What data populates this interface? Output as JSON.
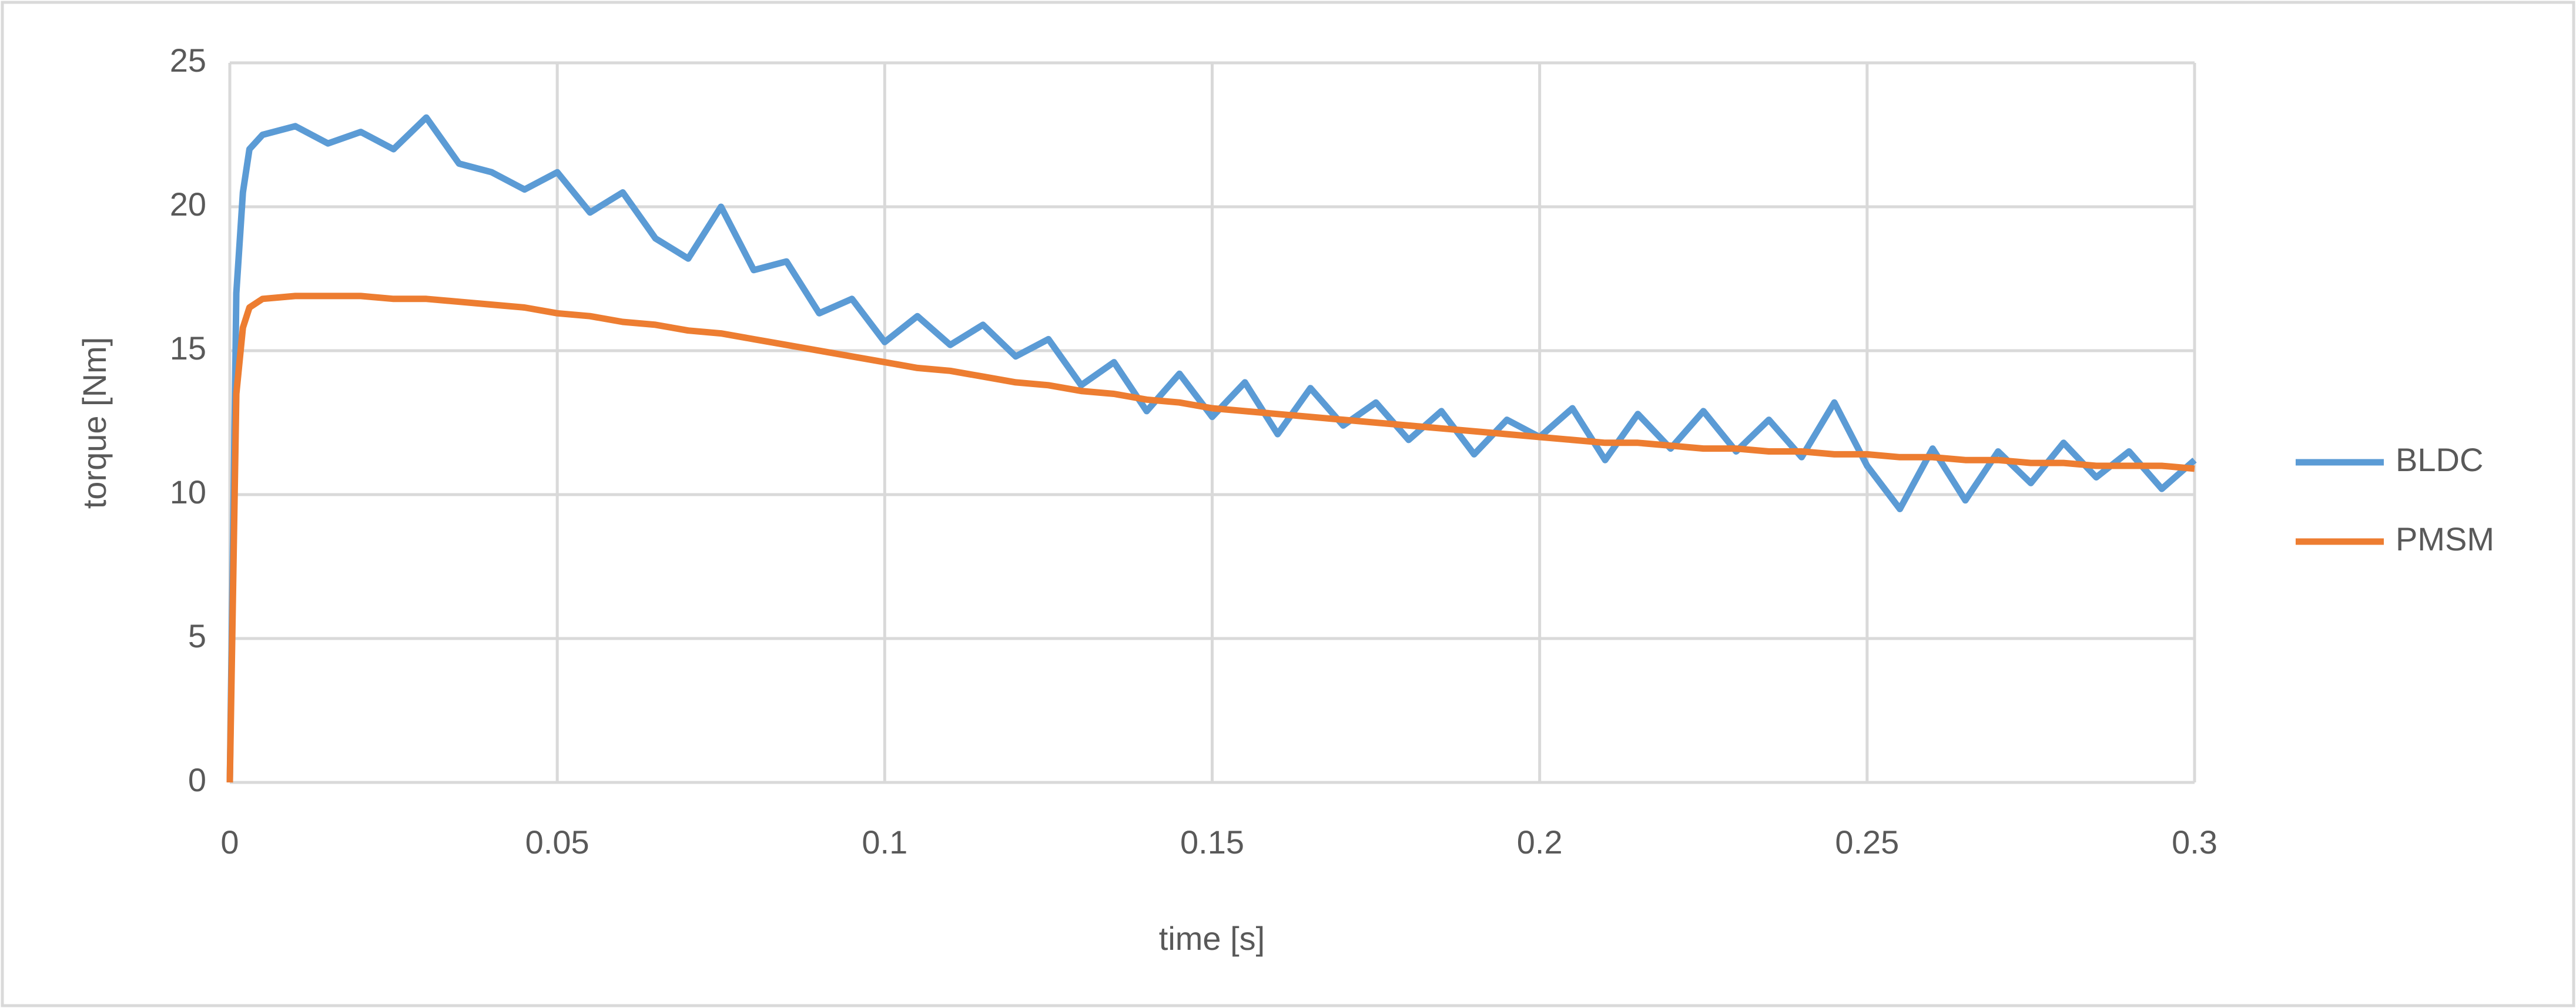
{
  "chart_data": {
    "type": "line",
    "xlabel": "time [s]",
    "ylabel": "torque [Nm]",
    "x": [
      0,
      0.001,
      0.002,
      0.003,
      0.005,
      0.01,
      0.015,
      0.02,
      0.025,
      0.03,
      0.035,
      0.04,
      0.045,
      0.05,
      0.055,
      0.06,
      0.065,
      0.07,
      0.075,
      0.08,
      0.085,
      0.09,
      0.095,
      0.1,
      0.105,
      0.11,
      0.115,
      0.12,
      0.125,
      0.13,
      0.135,
      0.14,
      0.145,
      0.15,
      0.155,
      0.16,
      0.165,
      0.17,
      0.175,
      0.18,
      0.185,
      0.19,
      0.195,
      0.2,
      0.205,
      0.21,
      0.215,
      0.22,
      0.225,
      0.23,
      0.235,
      0.24,
      0.245,
      0.25,
      0.255,
      0.26,
      0.265,
      0.27,
      0.275,
      0.28,
      0.285,
      0.29,
      0.295,
      0.3
    ],
    "series": [
      {
        "name": "BLDC",
        "color": "#5b9bd5",
        "values": [
          0,
          17,
          20.5,
          22,
          22.5,
          22.8,
          22.2,
          22.6,
          22.0,
          23.1,
          21.5,
          21.2,
          20.6,
          21.2,
          19.8,
          20.5,
          18.9,
          18.2,
          20.0,
          17.8,
          18.1,
          16.3,
          16.8,
          15.3,
          16.2,
          15.2,
          15.9,
          14.8,
          15.4,
          13.8,
          14.6,
          12.9,
          14.2,
          12.7,
          13.9,
          12.1,
          13.7,
          12.4,
          13.2,
          11.9,
          12.9,
          11.4,
          12.6,
          12.0,
          13.0,
          11.2,
          12.8,
          11.6,
          12.9,
          11.5,
          12.6,
          11.3,
          13.2,
          11.0,
          9.5,
          11.6,
          9.8,
          11.5,
          10.4,
          11.8,
          10.6,
          11.5,
          10.2,
          11.2
        ]
      },
      {
        "name": "PMSM",
        "color": "#ed7d31",
        "values": [
          0,
          13.5,
          15.8,
          16.5,
          16.8,
          16.9,
          16.9,
          16.9,
          16.8,
          16.8,
          16.7,
          16.6,
          16.5,
          16.3,
          16.2,
          16.0,
          15.9,
          15.7,
          15.6,
          15.4,
          15.2,
          15.0,
          14.8,
          14.6,
          14.4,
          14.3,
          14.1,
          13.9,
          13.8,
          13.6,
          13.5,
          13.3,
          13.2,
          13.0,
          12.9,
          12.8,
          12.7,
          12.6,
          12.5,
          12.4,
          12.3,
          12.2,
          12.1,
          12.0,
          11.9,
          11.8,
          11.8,
          11.7,
          11.6,
          11.6,
          11.5,
          11.5,
          11.4,
          11.4,
          11.3,
          11.3,
          11.2,
          11.2,
          11.1,
          11.1,
          11.0,
          11.0,
          11.0,
          10.9
        ]
      }
    ],
    "xlim": [
      0,
      0.3
    ],
    "xticks": [
      0,
      0.05,
      0.1,
      0.15,
      0.2,
      0.25,
      0.3
    ],
    "ylim": [
      0,
      25
    ],
    "yticks": [
      0,
      5,
      10,
      15,
      20,
      25
    ],
    "grid": true,
    "legend": "right"
  }
}
